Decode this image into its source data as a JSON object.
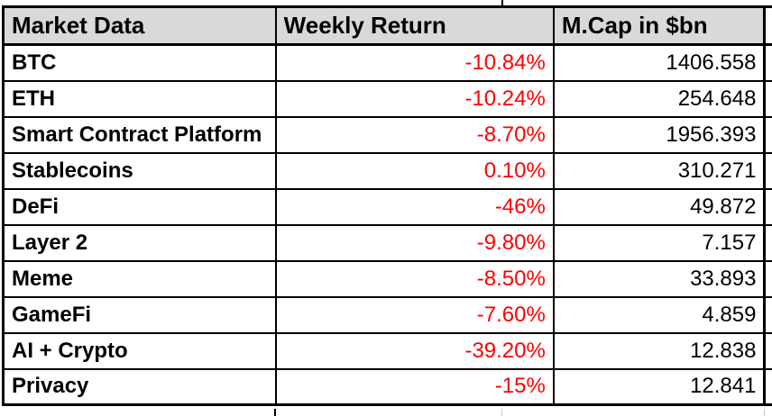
{
  "table": {
    "columns": [
      {
        "label": "Market Data"
      },
      {
        "label": "Weekly Return"
      },
      {
        "label": "M.Cap in $bn"
      }
    ],
    "rows": [
      {
        "name": "BTC",
        "weekly_return": "-10.84%",
        "mcap": "1406.558"
      },
      {
        "name": "ETH",
        "weekly_return": "-10.24%",
        "mcap": "254.648"
      },
      {
        "name": "Smart Contract Platform",
        "weekly_return": "-8.70%",
        "mcap": "1956.393"
      },
      {
        "name": "Stablecoins",
        "weekly_return": "0.10%",
        "mcap": "310.271"
      },
      {
        "name": "DeFi",
        "weekly_return": "-46%",
        "mcap": "49.872"
      },
      {
        "name": "Layer 2",
        "weekly_return": "-9.80%",
        "mcap": "7.157"
      },
      {
        "name": "Meme",
        "weekly_return": "-8.50%",
        "mcap": "33.893"
      },
      {
        "name": "GameFi",
        "weekly_return": "-7.60%",
        "mcap": "4.859"
      },
      {
        "name": "AI + Crypto",
        "weekly_return": "-39.20%",
        "mcap": "12.838"
      },
      {
        "name": "Privacy",
        "weekly_return": "-15%",
        "mcap": "12.841"
      }
    ],
    "colors": {
      "return_text": "#ff0000",
      "header_bg": "#d9d9d9",
      "border": "#000000"
    }
  }
}
